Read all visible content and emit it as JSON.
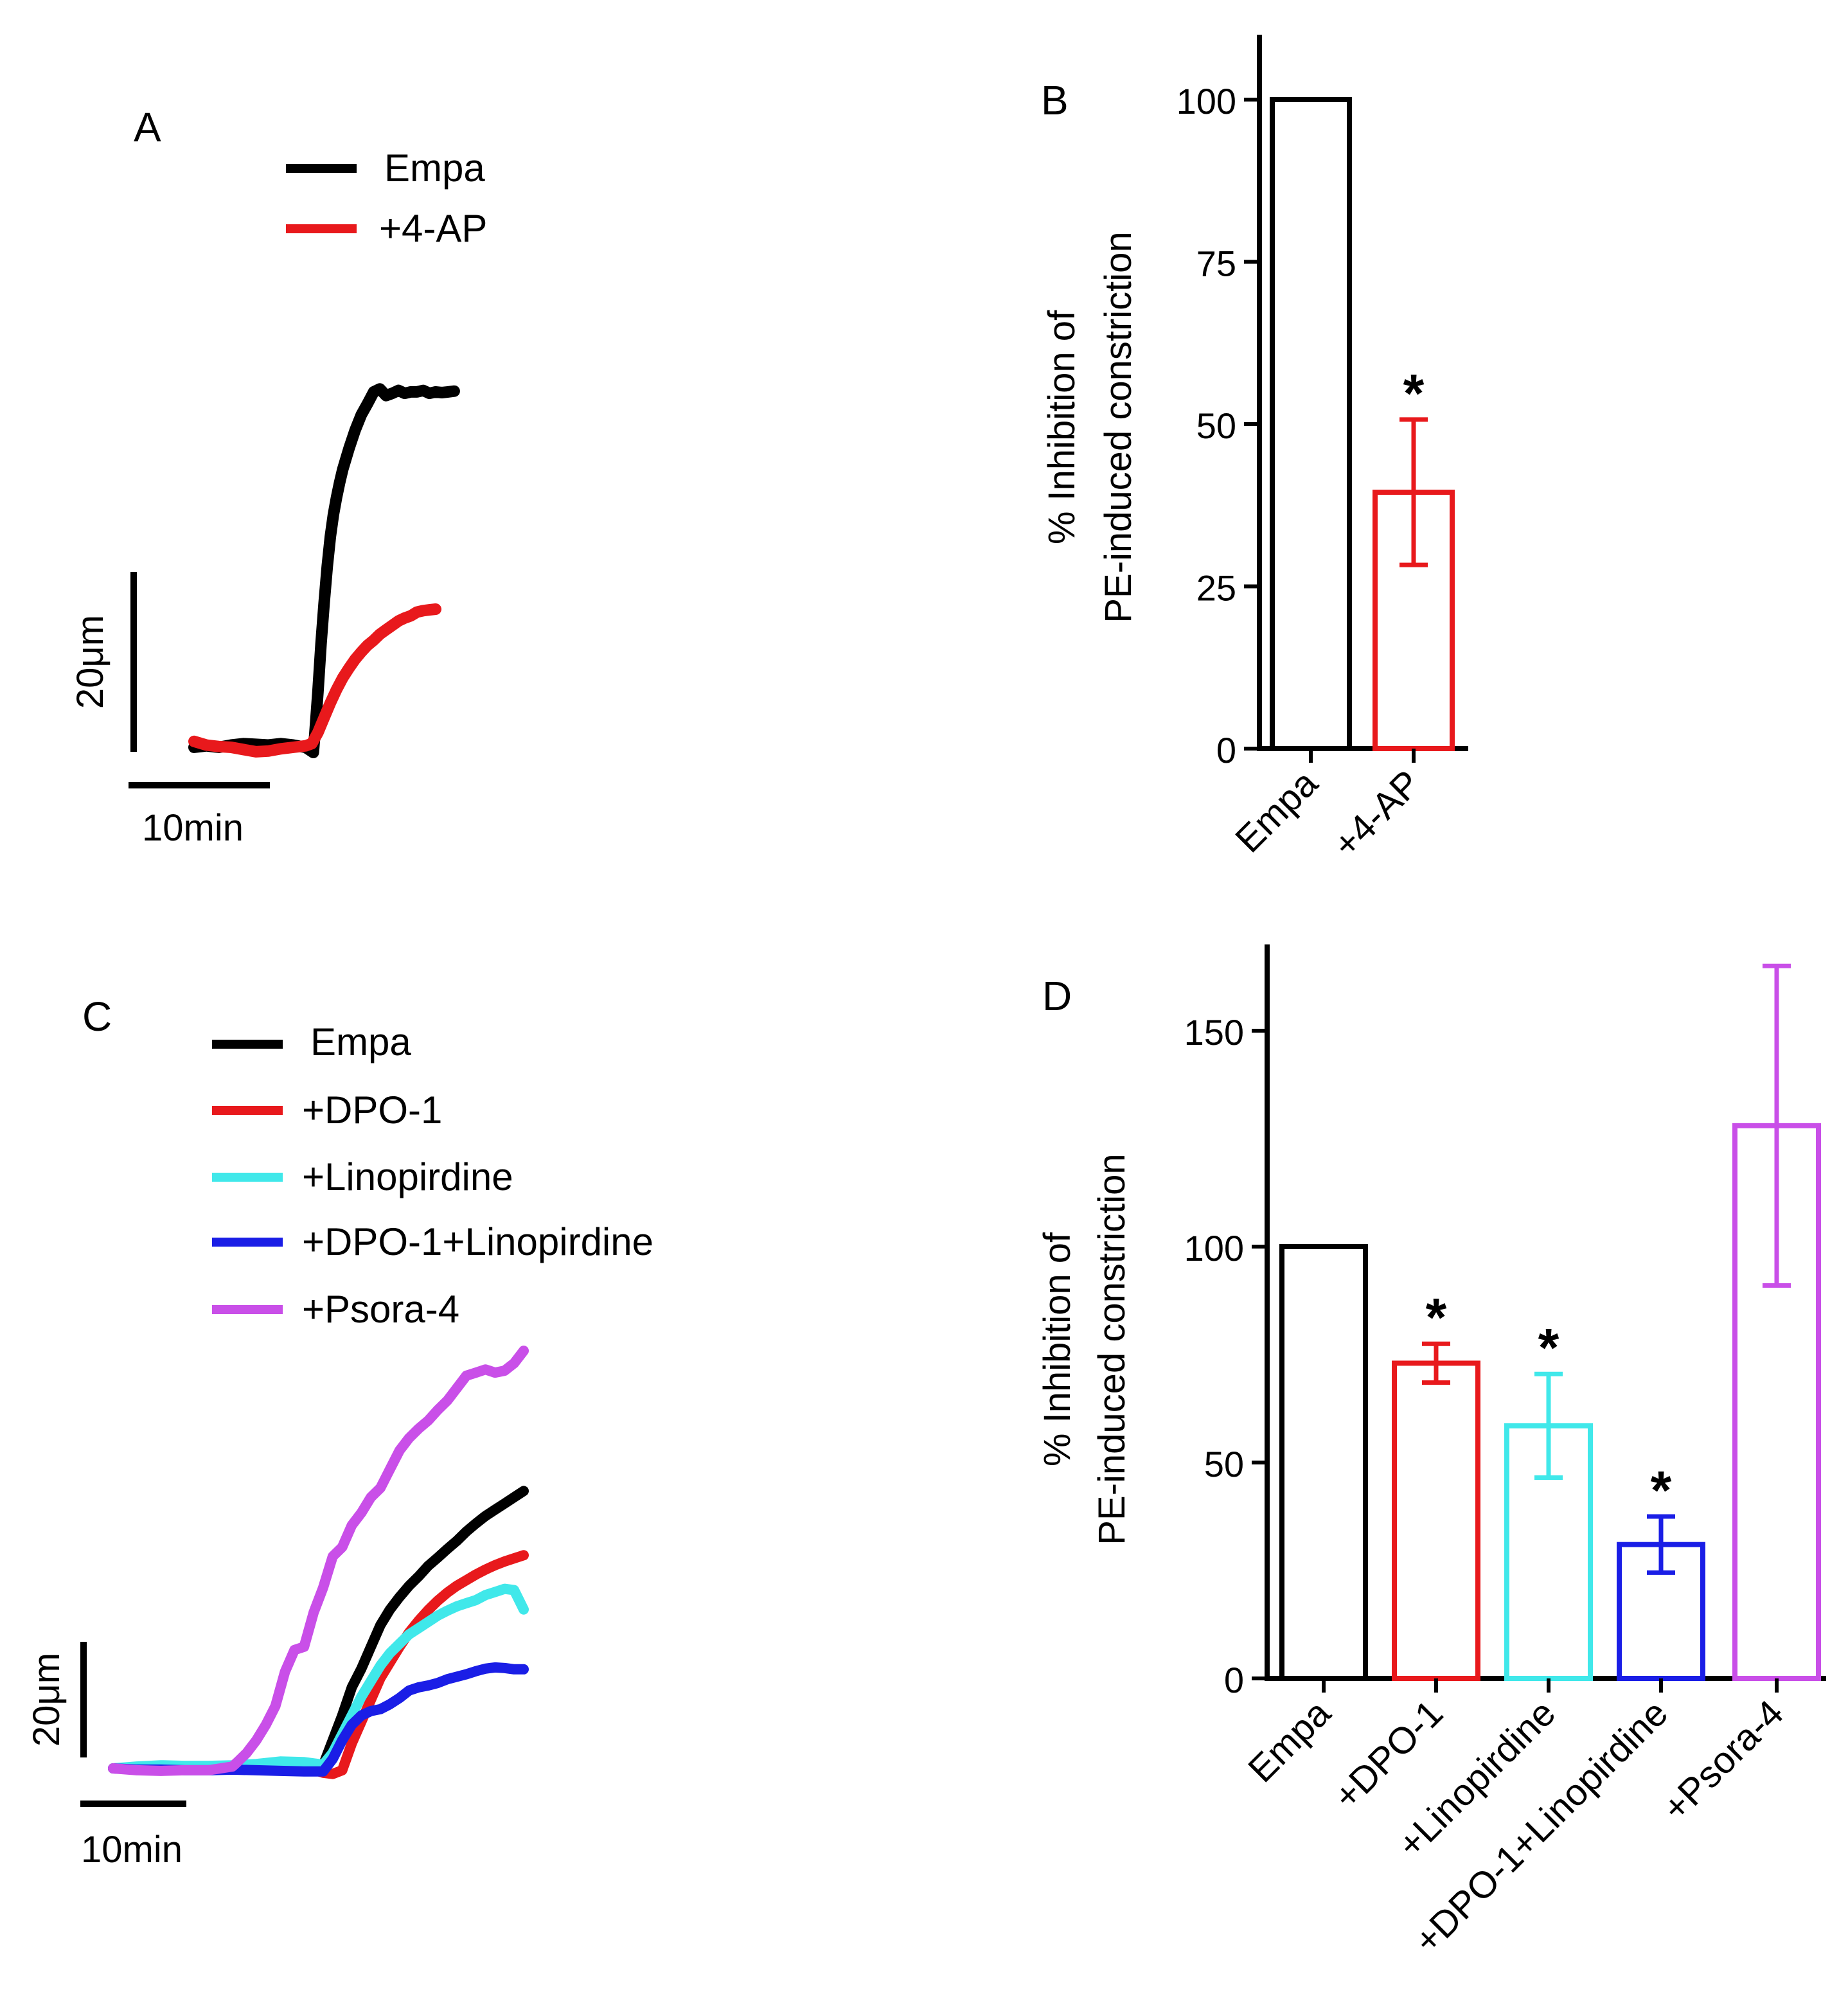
{
  "chart_data": [
    {
      "panel": "A",
      "type": "line",
      "title": "",
      "legend_position": "top-left",
      "series": [
        {
          "name": "Empa",
          "color": "#000000",
          "x": [
            0,
            4,
            8,
            12,
            16,
            20,
            24,
            28,
            32,
            36,
            38.5,
            39,
            40,
            41,
            42,
            43,
            44,
            45,
            46,
            47,
            48,
            50,
            52,
            54,
            56,
            58,
            60,
            62,
            64,
            66,
            68,
            70,
            72,
            74,
            76,
            78,
            80,
            82,
            84
          ],
          "y": [
            0,
            0.2,
            0,
            0.3,
            0.5,
            0.4,
            0.3,
            0.5,
            0.3,
            0,
            -0.7,
            1.8,
            7.5,
            14,
            19.5,
            24.5,
            28.5,
            31.5,
            33.8,
            35.8,
            37.6,
            40.4,
            42.9,
            45,
            46.5,
            48.1,
            48.5,
            47.6,
            47.9,
            48.3,
            47.9,
            48.1,
            48.1,
            48.3,
            47.9,
            48.1,
            48,
            48.1,
            48.2
          ]
        },
        {
          "name": "+4-AP",
          "color": "#e8191c",
          "x": [
            0,
            4,
            8,
            12,
            16,
            20,
            24,
            28,
            32,
            36,
            38,
            40,
            42,
            44,
            46,
            48,
            50,
            52,
            54,
            56,
            58,
            60,
            62,
            64,
            66,
            68,
            70,
            72,
            74,
            76,
            78
          ],
          "y": [
            0.8,
            0.3,
            0.1,
            0,
            -0.3,
            -0.6,
            -0.5,
            -0.2,
            0,
            0.2,
            0.5,
            2,
            4,
            6,
            7.8,
            9.4,
            10.7,
            11.9,
            12.9,
            13.8,
            14.5,
            15.3,
            15.9,
            16.5,
            17.1,
            17.5,
            17.8,
            18.3,
            18.5,
            18.6,
            18.7
          ]
        }
      ],
      "scale_bars": {
        "y_label": "20μm",
        "x_label": "10min"
      }
    },
    {
      "panel": "B",
      "type": "bar",
      "title": "",
      "categories": [
        "Empa",
        "+4-AP"
      ],
      "values": [
        100,
        39.5
      ],
      "errors": [
        0,
        11.2
      ],
      "colors": [
        "#000000",
        "#e8191c"
      ],
      "significance": [
        "",
        "*"
      ],
      "ylabel_line1": "% Inhibition of",
      "ylabel_line2": "PE-induced constriction",
      "xlabel": "",
      "ylim": [
        0,
        110
      ],
      "yticks": [
        0,
        25,
        50,
        75,
        100
      ]
    },
    {
      "panel": "C",
      "type": "line",
      "title": "",
      "legend_position": "top-left",
      "series": [
        {
          "name": "Empa",
          "color": "#000000",
          "x": [
            0,
            5,
            10,
            15,
            20,
            25,
            30,
            35,
            40,
            42,
            44,
            46,
            48,
            50,
            52,
            54,
            56,
            58,
            60,
            62,
            64,
            66,
            68,
            70,
            72,
            74,
            76,
            78,
            80,
            82,
            84,
            86
          ],
          "y": [
            0,
            0,
            0.2,
            0.1,
            0.1,
            0.2,
            0.1,
            0.1,
            0.2,
            0.3,
            0.5,
            4.5,
            8.5,
            13,
            16,
            19.5,
            23,
            25.5,
            27.5,
            29.3,
            30.8,
            32.5,
            33.8,
            35.2,
            36.5,
            38,
            39.3,
            40.5,
            41.5,
            42.5,
            43.5,
            44.5
          ]
        },
        {
          "name": "+DPO-1",
          "color": "#e8191c",
          "x": [
            0,
            5,
            10,
            15,
            20,
            25,
            30,
            35,
            40,
            44,
            46,
            48,
            50,
            52,
            54,
            56,
            58,
            60,
            62,
            64,
            66,
            68,
            70,
            72,
            74,
            76,
            78,
            80,
            82,
            84,
            86
          ],
          "y": [
            0,
            0.1,
            0.2,
            0,
            0.2,
            0.1,
            0.3,
            0.2,
            0.3,
            -0.7,
            -0.9,
            -0.3,
            4,
            7.5,
            11,
            14.5,
            17,
            19.5,
            21.8,
            23.7,
            25.4,
            26.9,
            28.2,
            29.3,
            30.2,
            31.1,
            31.9,
            32.6,
            33.2,
            33.7,
            34.2
          ]
        },
        {
          "name": "+Linopirdine",
          "color": "#40e8ea",
          "x": [
            0,
            5,
            10,
            15,
            20,
            25,
            30,
            35,
            40,
            44,
            46,
            48,
            50,
            52,
            54,
            56,
            58,
            60,
            62,
            64,
            66,
            68,
            70,
            72,
            74,
            76,
            78,
            80,
            82,
            84,
            86
          ],
          "y": [
            0,
            0.3,
            0.5,
            0.4,
            0.4,
            0.5,
            0.7,
            1.1,
            1.0,
            0.6,
            2.5,
            5.5,
            8.5,
            11.5,
            14,
            16.5,
            18.5,
            20,
            21.5,
            22.5,
            23.5,
            24.5,
            25.3,
            26,
            26.5,
            27,
            27.8,
            28.3,
            28.8,
            28.6,
            25.5
          ]
        },
        {
          "name": "+DPO-1+Linopirdine",
          "color": "#1a1ee6",
          "x": [
            0,
            5,
            10,
            15,
            20,
            25,
            30,
            35,
            40,
            44,
            46,
            48,
            50,
            52,
            54,
            56,
            58,
            60,
            62,
            64,
            66,
            68,
            70,
            72,
            74,
            76,
            78,
            80,
            82,
            84,
            86
          ],
          "y": [
            0,
            -0.2,
            -0.2,
            -0.3,
            -0.3,
            -0.2,
            -0.3,
            -0.4,
            -0.5,
            -0.5,
            1.5,
            4.5,
            7,
            8.5,
            9.2,
            9.5,
            10.3,
            11.3,
            12.5,
            13,
            13.3,
            13.7,
            14.3,
            14.7,
            15.1,
            15.6,
            16,
            16.2,
            16.1,
            15.9,
            15.9
          ]
        },
        {
          "name": "+Psora-4",
          "color": "#c94fe8",
          "x": [
            0,
            5,
            10,
            15,
            20,
            25,
            26,
            28,
            30,
            32,
            34,
            36,
            38,
            40,
            42,
            44,
            46,
            48,
            50,
            52,
            54,
            56,
            58,
            60,
            62,
            64,
            66,
            68,
            70,
            72,
            74,
            76,
            78,
            80,
            82,
            84,
            86
          ],
          "y": [
            0,
            -0.3,
            -0.4,
            -0.3,
            -0.3,
            0.3,
            1,
            2.5,
            4.5,
            7,
            10,
            15.5,
            19,
            19.5,
            25,
            29,
            34,
            35.5,
            39,
            41,
            43.5,
            45,
            48,
            51,
            53,
            54.5,
            55.8,
            57.5,
            59,
            61,
            63,
            63.5,
            64,
            63.5,
            63.8,
            65,
            67
          ]
        }
      ],
      "scale_bars": {
        "y_label": "20μm",
        "x_label": "10min"
      }
    },
    {
      "panel": "D",
      "type": "bar",
      "title": "",
      "categories": [
        "Empa",
        "+DPO-1",
        "+Linopirdine",
        "+DPO-1+Linopirdine",
        "+Psora-4"
      ],
      "values": [
        100,
        73,
        58.5,
        31,
        128
      ],
      "errors": [
        0,
        4.5,
        12,
        6.5,
        37
      ],
      "colors": [
        "#000000",
        "#e8191c",
        "#40e8ea",
        "#1a1ee6",
        "#c94fe8"
      ],
      "significance": [
        "",
        "*",
        "*",
        "*",
        ""
      ],
      "ylabel_line1": "% Inhibition of",
      "ylabel_line2": "PE-induced constriction",
      "xlabel": "",
      "ylim": [
        0,
        170
      ],
      "yticks": [
        0,
        50,
        100,
        150
      ]
    }
  ]
}
